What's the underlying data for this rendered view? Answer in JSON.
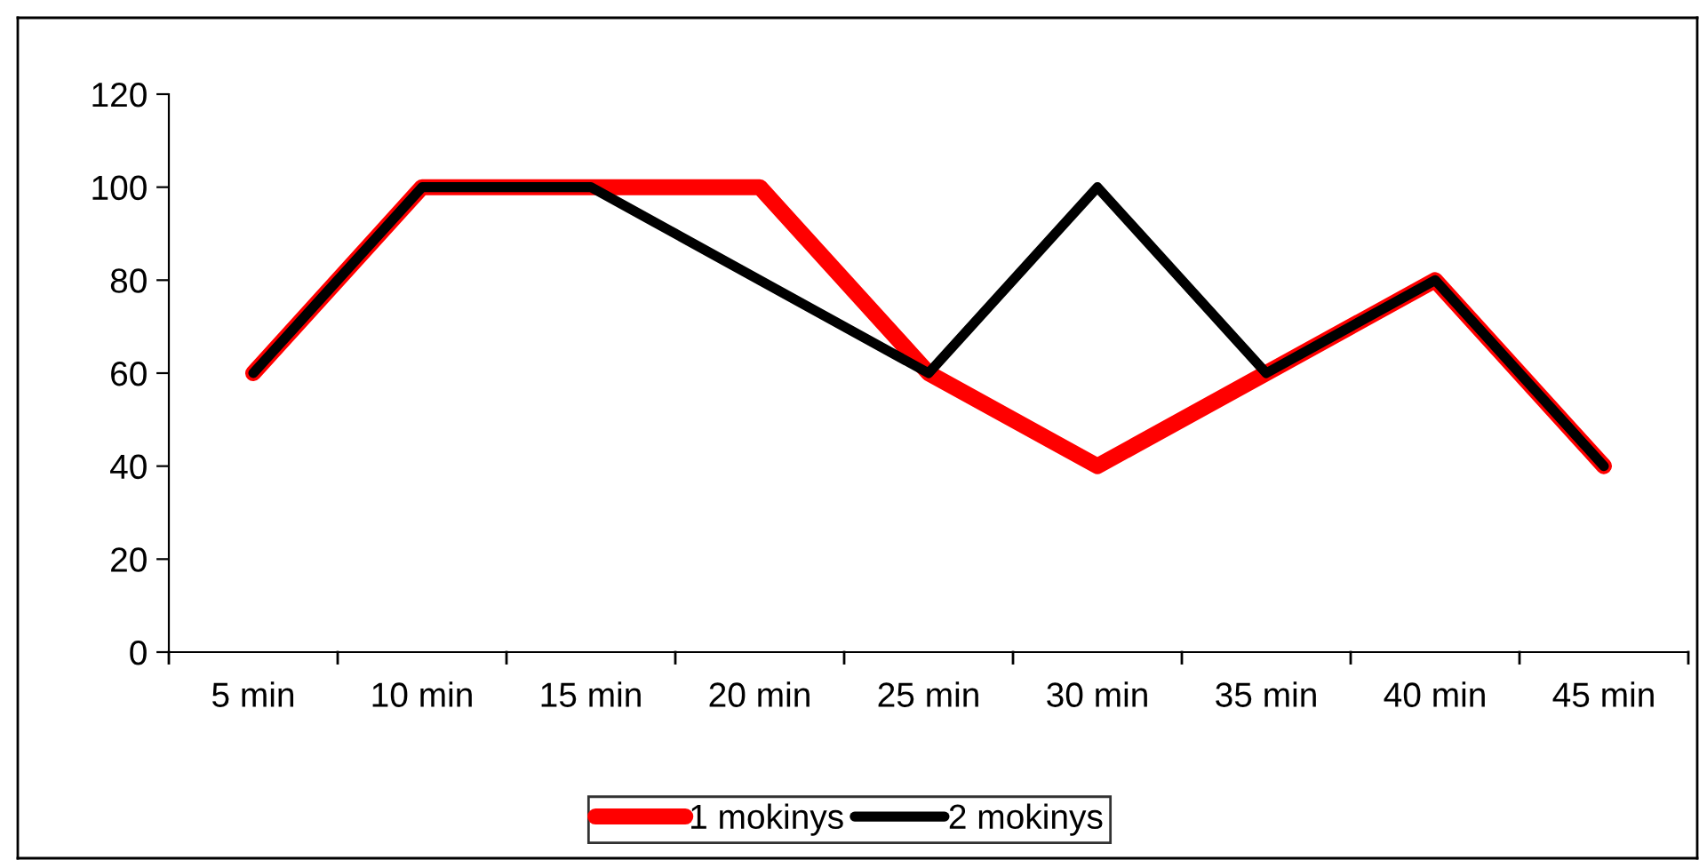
{
  "chart_data": {
    "type": "line",
    "categories": [
      "5 min",
      "10 min",
      "15 min",
      "20 min",
      "25 min",
      "30 min",
      "35 min",
      "40 min",
      "45 min"
    ],
    "series": [
      {
        "name": "1 mokinys",
        "color": "#ff0000",
        "values": [
          60,
          100,
          100,
          100,
          60,
          40,
          60,
          80,
          40
        ]
      },
      {
        "name": "2 mokinys",
        "color": "#000000",
        "values": [
          60,
          100,
          100,
          80,
          60,
          100,
          60,
          80,
          40
        ]
      }
    ],
    "ylim": [
      0,
      120
    ],
    "yticks": [
      0,
      20,
      40,
      60,
      80,
      100,
      120
    ],
    "grid": false,
    "legend": "bottom",
    "marker": "none",
    "line_style": "solid"
  }
}
